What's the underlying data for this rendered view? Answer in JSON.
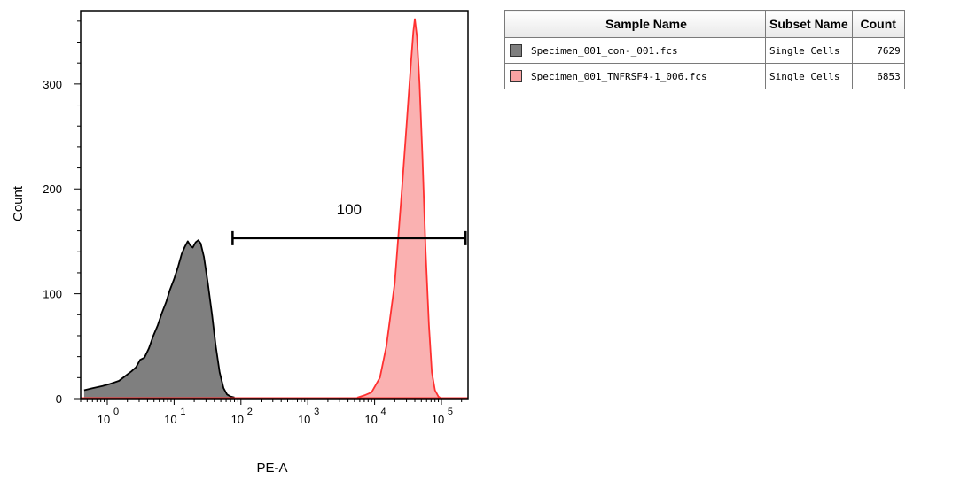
{
  "chart_data": {
    "type": "area",
    "xlabel": "PE-A",
    "ylabel": "Count",
    "xscale": "log",
    "xlim": [
      0.4,
      250000
    ],
    "ylim": [
      0,
      370
    ],
    "xticks": [
      {
        "value": 1,
        "base": "10",
        "exp": "0"
      },
      {
        "value": 10,
        "base": "10",
        "exp": "1"
      },
      {
        "value": 100,
        "base": "10",
        "exp": "2"
      },
      {
        "value": 1000,
        "base": "10",
        "exp": "3"
      },
      {
        "value": 10000,
        "base": "10",
        "exp": "4"
      },
      {
        "value": 100000,
        "base": "10",
        "exp": "5"
      }
    ],
    "yticks": [
      0,
      100,
      200,
      300
    ],
    "series": [
      {
        "name": "Specimen_001_con-_001.fcs",
        "color": "#7f7f7f",
        "stroke": "#000000",
        "points": [
          [
            0.45,
            8
          ],
          [
            0.6,
            10
          ],
          [
            0.85,
            12
          ],
          [
            1.1,
            14
          ],
          [
            1.5,
            17
          ],
          [
            1.9,
            22
          ],
          [
            2.3,
            26
          ],
          [
            2.7,
            30
          ],
          [
            3.1,
            37
          ],
          [
            3.6,
            39
          ],
          [
            4.2,
            48
          ],
          [
            4.9,
            60
          ],
          [
            5.7,
            70
          ],
          [
            6.6,
            82
          ],
          [
            7.6,
            92
          ],
          [
            8.7,
            104
          ],
          [
            10,
            114
          ],
          [
            11.5,
            126
          ],
          [
            13,
            138
          ],
          [
            14.5,
            145
          ],
          [
            16,
            150
          ],
          [
            17.5,
            146
          ],
          [
            19,
            144
          ],
          [
            21,
            149
          ],
          [
            23,
            151
          ],
          [
            25,
            148
          ],
          [
            28,
            135
          ],
          [
            32,
            110
          ],
          [
            37,
            80
          ],
          [
            42,
            50
          ],
          [
            48,
            25
          ],
          [
            55,
            10
          ],
          [
            62,
            4
          ],
          [
            70,
            2
          ],
          [
            80,
            1
          ]
        ]
      },
      {
        "name": "Specimen_001_TNFRSF4-1_006.fcs",
        "color": "#f9a3a3",
        "stroke": "#ff3030",
        "points": [
          [
            5500,
            1
          ],
          [
            7000,
            3
          ],
          [
            9000,
            6
          ],
          [
            12000,
            20
          ],
          [
            15000,
            50
          ],
          [
            20000,
            110
          ],
          [
            25000,
            190
          ],
          [
            30000,
            260
          ],
          [
            35000,
            320
          ],
          [
            38000,
            350
          ],
          [
            40000,
            362
          ],
          [
            43000,
            345
          ],
          [
            47000,
            300
          ],
          [
            52000,
            230
          ],
          [
            58000,
            140
          ],
          [
            65000,
            70
          ],
          [
            72000,
            25
          ],
          [
            80000,
            8
          ],
          [
            90000,
            2
          ],
          [
            100000,
            0
          ]
        ]
      }
    ],
    "gate": {
      "x_start": 75,
      "x_end": 230000,
      "y": 153,
      "label": "100"
    }
  },
  "legend": {
    "headers": {
      "sample": "Sample Name",
      "subset": "Subset Name",
      "count": "Count"
    },
    "rows": [
      {
        "color": "#7f7f7f",
        "sample": "Specimen_001_con-_001.fcs",
        "subset": "Single Cells",
        "count": "7629"
      },
      {
        "color": "#f9a3a3",
        "sample": "Specimen_001_TNFRSF4-1_006.fcs",
        "subset": "Single Cells",
        "count": "6853"
      }
    ]
  }
}
